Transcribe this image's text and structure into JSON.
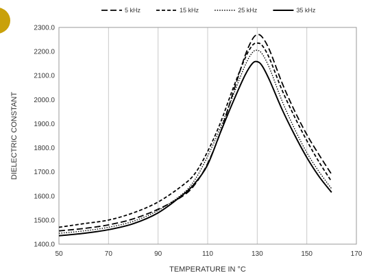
{
  "chart_data": {
    "type": "line",
    "xlabel": "TEMPERATURE IN °C",
    "ylabel": "DIELECTRIC CONSTANT",
    "xlim": [
      50,
      170
    ],
    "ylim": [
      1400,
      2300
    ],
    "xticks": [
      50,
      70,
      90,
      110,
      130,
      150,
      170
    ],
    "yticks": [
      1400,
      1500,
      1600,
      1700,
      1800,
      1900,
      2000,
      2100,
      2200,
      2300
    ],
    "xtick_labels": [
      "50",
      "70",
      "90",
      "110",
      "130",
      "150",
      "170"
    ],
    "ytick_labels": [
      "1400.0",
      "1500.0",
      "1600.0",
      "1700.0",
      "1800.0",
      "1900.0",
      "2000.0",
      "2100.0",
      "2200.0",
      "2300.0"
    ],
    "grid": "vertical lines only",
    "legend_position": "top-center",
    "series": [
      {
        "name": "5 kHz",
        "style": "long-dash",
        "x": [
          50,
          60,
          70,
          80,
          90,
          100,
          105,
          110,
          115,
          120,
          125,
          128,
          130,
          132,
          135,
          140,
          145,
          150,
          155,
          160
        ],
        "y": [
          1455,
          1465,
          1480,
          1505,
          1545,
          1600,
          1650,
          1735,
          1860,
          2020,
          2180,
          2250,
          2270,
          2260,
          2205,
          2070,
          1955,
          1855,
          1770,
          1690
        ]
      },
      {
        "name": "15 kHz",
        "style": "short-dash",
        "x": [
          50,
          60,
          70,
          80,
          90,
          100,
          105,
          110,
          115,
          120,
          125,
          128,
          130,
          132,
          135,
          140,
          145,
          150,
          155,
          160
        ],
        "y": [
          1470,
          1485,
          1500,
          1530,
          1575,
          1645,
          1695,
          1785,
          1900,
          2040,
          2170,
          2225,
          2235,
          2225,
          2170,
          2040,
          1930,
          1830,
          1740,
          1660
        ]
      },
      {
        "name": "25 kHz",
        "style": "dotted",
        "x": [
          50,
          60,
          70,
          80,
          90,
          100,
          105,
          110,
          115,
          120,
          125,
          128,
          130,
          132,
          135,
          140,
          145,
          150,
          155,
          160
        ],
        "y": [
          1445,
          1455,
          1470,
          1495,
          1540,
          1610,
          1670,
          1765,
          1880,
          2010,
          2140,
          2195,
          2205,
          2190,
          2130,
          1995,
          1880,
          1780,
          1700,
          1630
        ]
      },
      {
        "name": "35 kHz",
        "style": "solid",
        "x": [
          50,
          60,
          70,
          80,
          90,
          100,
          105,
          110,
          115,
          120,
          125,
          128,
          130,
          132,
          135,
          140,
          145,
          150,
          155,
          160
        ],
        "y": [
          1435,
          1445,
          1460,
          1485,
          1530,
          1605,
          1655,
          1730,
          1860,
          1985,
          2100,
          2150,
          2158,
          2140,
          2080,
          1960,
          1855,
          1760,
          1680,
          1615
        ]
      }
    ]
  },
  "colors": {
    "line": "#000000",
    "grid": "#c8c8c8",
    "text": "#333333",
    "badge": "#b58a00"
  }
}
